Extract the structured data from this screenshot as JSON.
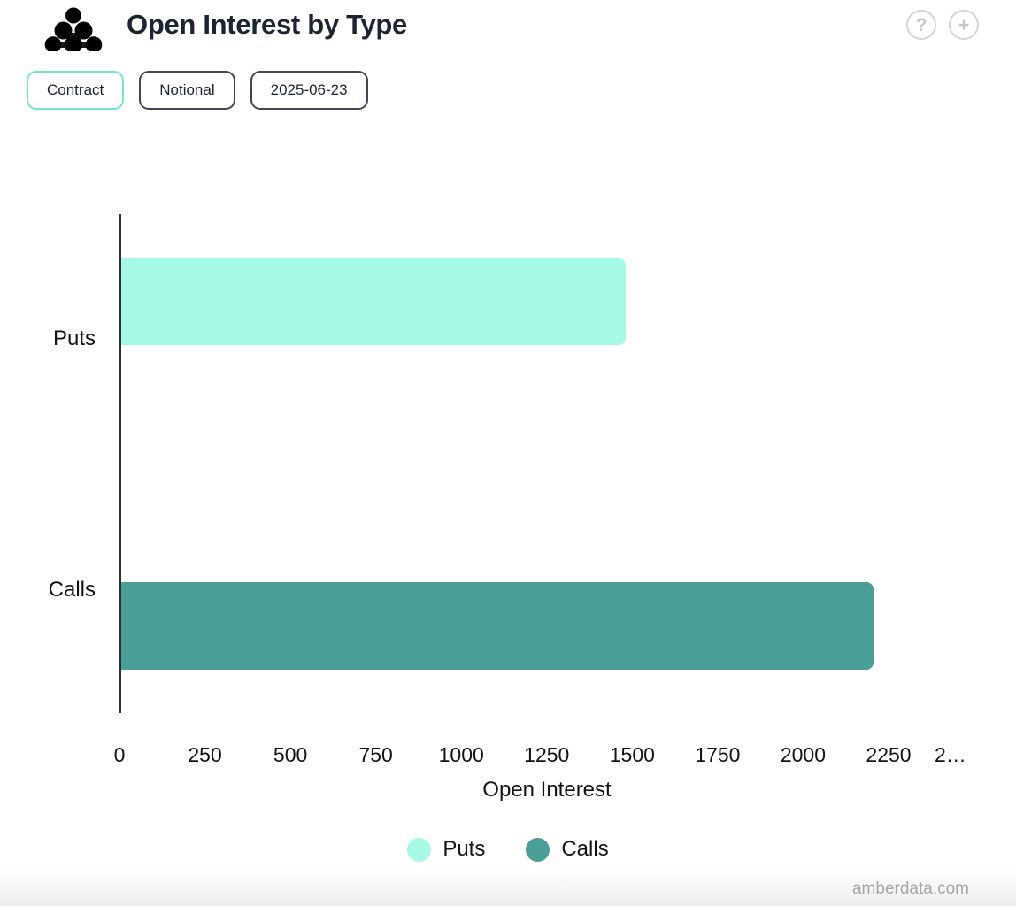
{
  "header": {
    "title": "Open Interest by Type",
    "help_icon": "?",
    "add_icon": "+"
  },
  "toolbar": {
    "buttons": [
      {
        "label": "Contract",
        "active": true
      },
      {
        "label": "Notional",
        "active": false
      },
      {
        "label": "2025-06-23",
        "active": false
      }
    ]
  },
  "chart_data": {
    "type": "bar",
    "orientation": "horizontal",
    "title": "Open Interest by Type",
    "categories": [
      "Puts",
      "Calls"
    ],
    "values": [
      1475,
      2200
    ],
    "series_colors": [
      "#A5F9E7",
      "#499E96"
    ],
    "xlabel": "Open Interest",
    "ylabel": "",
    "xlim": [
      0,
      2500
    ],
    "xticks": [
      0,
      250,
      500,
      750,
      1000,
      1250,
      1500,
      1750,
      2000,
      2250
    ],
    "xtick_overflow_label": "2…",
    "grid": false,
    "legend": [
      "Puts",
      "Calls"
    ],
    "legend_position": "bottom"
  },
  "colors": {
    "puts": "#A5F9E7",
    "calls": "#499E96",
    "active_button_border": "#76E4D1",
    "inactive_button_border": "#3E4859",
    "axis_line": "#2C2F33",
    "title_text": "#1B2433",
    "icon_gray": "#D4D4D4",
    "watermark_gray": "#A6A6A6"
  },
  "watermark": "amberdata.com"
}
